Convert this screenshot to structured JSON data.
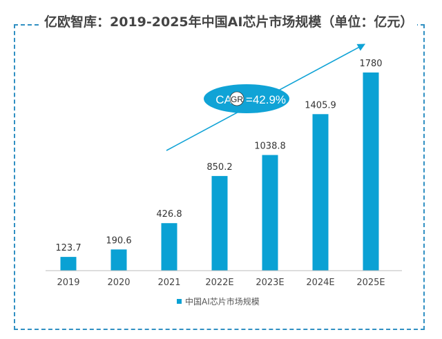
{
  "chart_data": {
    "type": "bar",
    "title": "亿欧智库：2019-2025年中国AI芯片市场规模（单位：亿元）",
    "categories": [
      "2019",
      "2020",
      "2021",
      "2022E",
      "2023E",
      "2024E",
      "2025E"
    ],
    "series": [
      {
        "name": "中国AI芯片市场规模",
        "values": [
          123.7,
          190.6,
          426.8,
          850.2,
          1038.8,
          1405.9,
          1780
        ]
      }
    ],
    "data_labels": [
      "123.7",
      "190.6",
      "426.8",
      "850.2",
      "1038.8",
      "1405.9",
      "1780"
    ],
    "annotation": {
      "text_before": "CA",
      "badge": "GR",
      "text_after": "=42.9%"
    },
    "ylim": [
      0,
      1780
    ],
    "grid": false,
    "legend_position": "bottom",
    "colors": {
      "bar": "#0aa1d4",
      "annotation": "#10a3d6",
      "title": "#444444",
      "frame": "#2f8fc2"
    }
  }
}
